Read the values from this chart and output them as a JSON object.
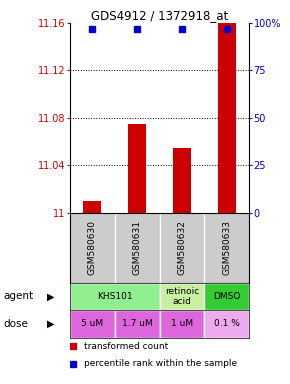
{
  "title": "GDS4912 / 1372918_at",
  "samples": [
    "GSM580630",
    "GSM580631",
    "GSM580632",
    "GSM580633"
  ],
  "bar_values": [
    11.01,
    11.075,
    11.055,
    11.16
  ],
  "percentile_values": [
    97,
    97,
    97,
    97
  ],
  "ylim_left": [
    11.0,
    11.16
  ],
  "ylim_right": [
    0,
    100
  ],
  "yticks_left": [
    11.0,
    11.04,
    11.08,
    11.12,
    11.16
  ],
  "yticks_left_labels": [
    "11",
    "11.04",
    "11.08",
    "11.12",
    "11.16"
  ],
  "yticks_right": [
    0,
    25,
    50,
    75,
    100
  ],
  "yticks_right_labels": [
    "0",
    "25",
    "50",
    "75",
    "100%"
  ],
  "bar_color": "#cc0000",
  "dot_color": "#0000cc",
  "agent_spans": [
    {
      "start": 1,
      "end": 2,
      "label": "KHS101",
      "color": "#90ee90"
    },
    {
      "start": 3,
      "end": 3,
      "label": "retinoic\nacid",
      "color": "#c8f0a0"
    },
    {
      "start": 4,
      "end": 4,
      "label": "DMSO",
      "color": "#33cc33"
    }
  ],
  "dose_labels": [
    "5 uM",
    "1.7 uM",
    "1 uM",
    "0.1 %"
  ],
  "dose_colors": [
    "#dd66dd",
    "#dd66dd",
    "#dd66dd",
    "#eeaaee"
  ],
  "sample_bg_color": "#cccccc",
  "left_label_color": "#cc0000",
  "right_label_color": "#0000cc",
  "bg_color": "#ffffff"
}
